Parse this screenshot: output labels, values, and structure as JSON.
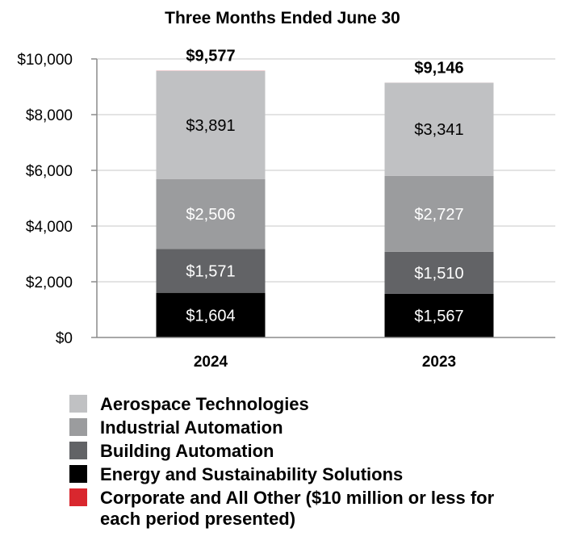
{
  "chart_data": {
    "type": "bar",
    "stacked": true,
    "title": "Three Months Ended June 30",
    "xlabel": "",
    "ylabel": "",
    "ylim": [
      0,
      10000
    ],
    "yticks": [
      0,
      2000,
      4000,
      6000,
      8000,
      10000
    ],
    "ytick_labels": [
      "$0",
      "$2,000",
      "$4,000",
      "$6,000",
      "$8,000",
      "$10,000"
    ],
    "grid": true,
    "categories": [
      "2024",
      "2023"
    ],
    "totals": [
      9577,
      9146
    ],
    "total_labels": [
      "$9,577",
      "$9,146"
    ],
    "series": [
      {
        "name": "Energy and Sustainability Solutions",
        "color": "#000000",
        "text_color": "#ffffff",
        "values": [
          1604,
          1567
        ],
        "labels": [
          "$1,604",
          "$1,567"
        ]
      },
      {
        "name": "Building Automation",
        "color": "#626366",
        "text_color": "#ffffff",
        "values": [
          1571,
          1510
        ],
        "labels": [
          "$1,571",
          "$1,510"
        ]
      },
      {
        "name": "Industrial Automation",
        "color": "#9b9c9e",
        "text_color": "#ffffff",
        "values": [
          2506,
          2727
        ],
        "labels": [
          "$2,506",
          "$2,727"
        ]
      },
      {
        "name": "Aerospace Technologies",
        "color": "#c0c1c3",
        "text_color": "#000000",
        "values": [
          3891,
          3341
        ],
        "labels": [
          "$3,891",
          "$3,341"
        ]
      },
      {
        "name": "Corporate and All Other ($10 million or less for each period presented)",
        "color": "#d9272e",
        "text_color": "#000000",
        "values": [
          5,
          1
        ],
        "labels": [
          "",
          ""
        ]
      }
    ]
  },
  "legend": {
    "placement": "bottom",
    "items": [
      {
        "label": "Aerospace Technologies",
        "color": "#c0c1c3"
      },
      {
        "label": "Industrial Automation",
        "color": "#9b9c9e"
      },
      {
        "label": "Building Automation",
        "color": "#626366"
      },
      {
        "label": "Energy and Sustainability Solutions",
        "color": "#000000"
      },
      {
        "label": "Corporate and All Other ($10 million or less for each period presented)",
        "color": "#d9272e"
      }
    ]
  }
}
